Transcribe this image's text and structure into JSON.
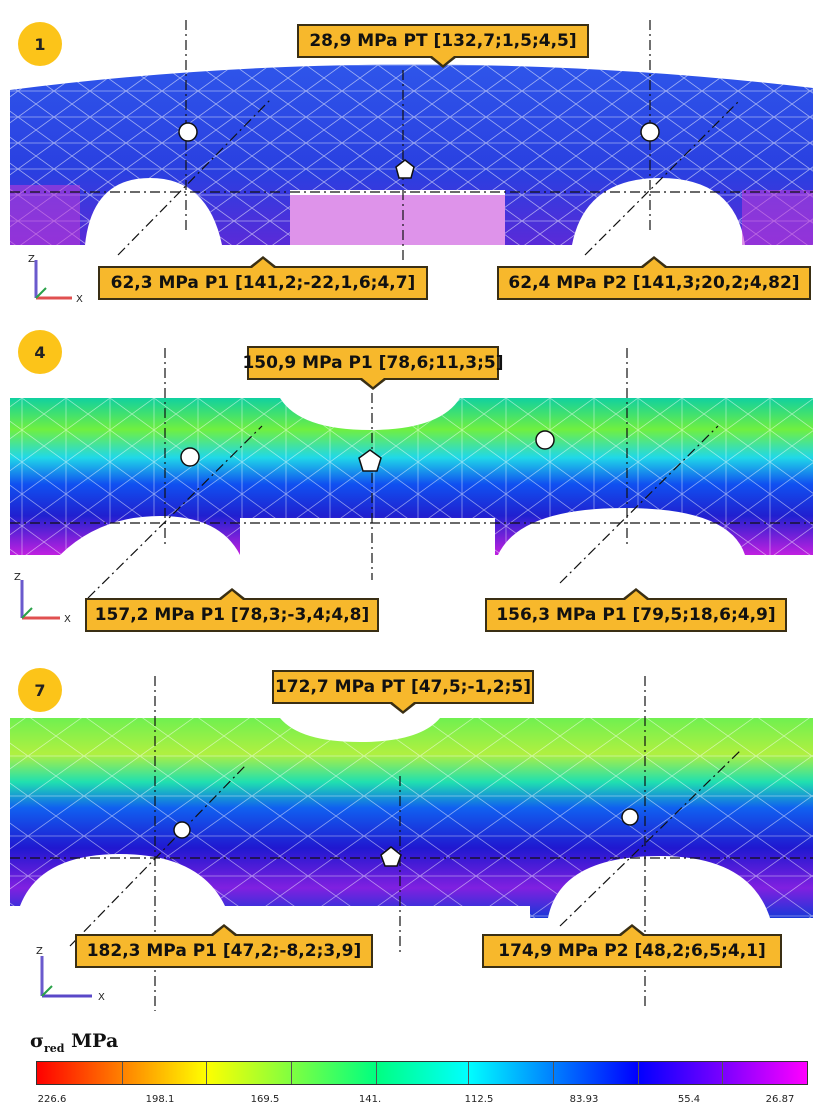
{
  "panels": [
    {
      "step": "1",
      "top_callout": "28,9 MPa PT [132,7;1,5;4,5]",
      "left_callout": "62,3 MPa P1 [141,2;-22,1,6;4,7]",
      "right_callout": "62,4 MPa P2 [141,3;20,2;4,82]"
    },
    {
      "step": "4",
      "top_callout": "150,9 MPa P1 [78,6;11,3;5]",
      "left_callout": "157,2 MPa P1 [78,3;-3,4;4,8]",
      "right_callout": "156,3 MPa P1 [79,5;18,6;4,9]"
    },
    {
      "step": "7",
      "top_callout": "172,7 MPa PT [47,5;-1,2;5]",
      "left_callout": "182,3 MPa P1 [47,2;-8,2;3,9]",
      "right_callout": "174,9 MPa P2 [48,2;6,5;4,1]"
    }
  ],
  "axis_labels": {
    "z": "Z",
    "x": "X"
  },
  "legend": {
    "symbol": "σ",
    "subscript": "red",
    "unit": "MPa",
    "ticks": [
      "226.6",
      "198.1",
      "169.5",
      "141.",
      "112.5",
      "83.93",
      "55.4",
      "26.87"
    ]
  },
  "colors": {
    "callout": "#f7b82c",
    "badge": "#fcc419",
    "panel1_base": "#2a4de0",
    "panel47_base": "#1a2fd0"
  }
}
